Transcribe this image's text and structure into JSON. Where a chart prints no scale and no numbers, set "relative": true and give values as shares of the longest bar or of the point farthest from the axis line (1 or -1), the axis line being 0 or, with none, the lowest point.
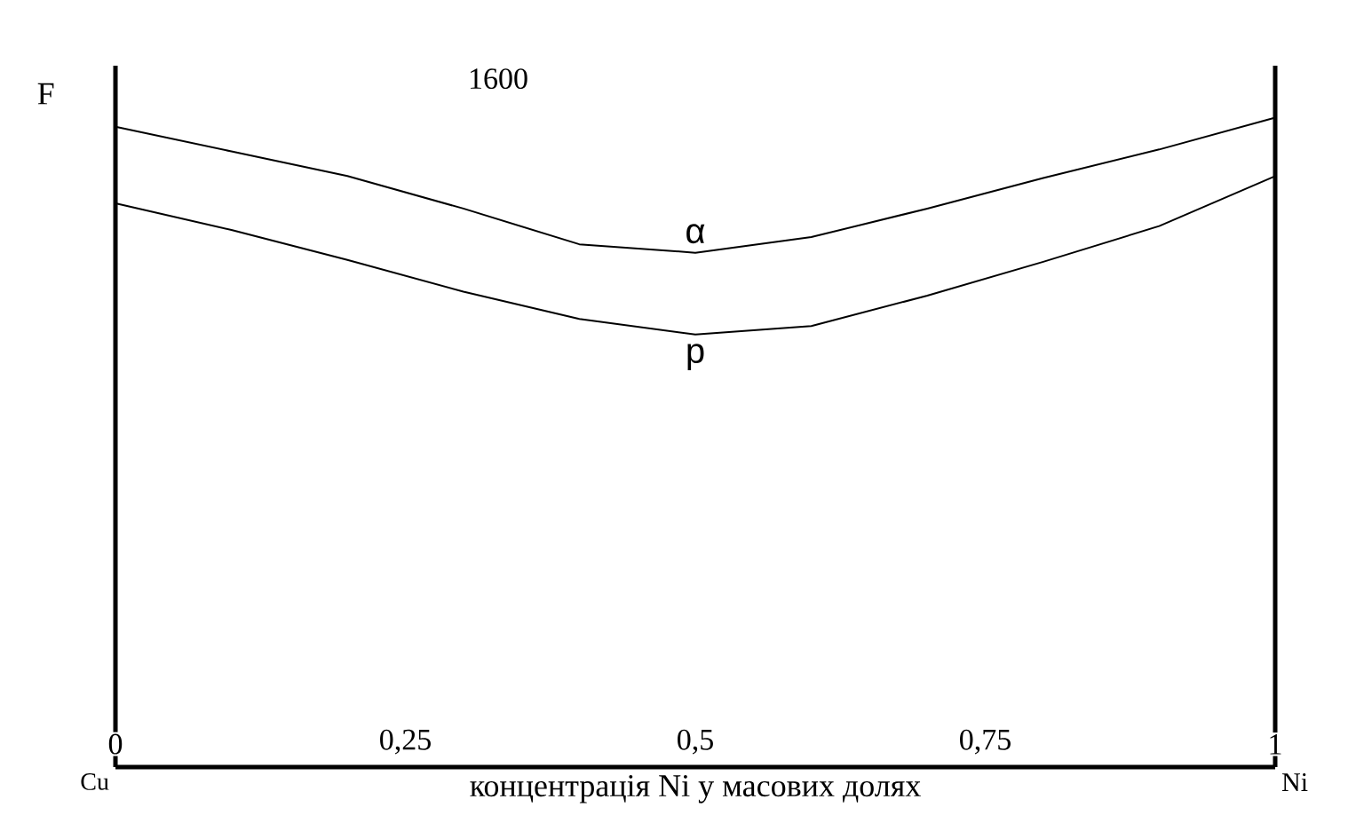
{
  "chart_data": {
    "type": "line",
    "relative": true,
    "ylabel": "F",
    "xlabel": "концентрація Ni у масових долях",
    "x": [
      0,
      0.1,
      0.2,
      0.3,
      0.4,
      0.5,
      0.6,
      0.7,
      0.8,
      0.9,
      1.0
    ],
    "xlim": [
      0,
      1
    ],
    "xticks": [
      {
        "value": 0,
        "label": "0"
      },
      {
        "value": 0.25,
        "label": "0,25"
      },
      {
        "value": 0.5,
        "label": "0,5"
      },
      {
        "value": 0.75,
        "label": "0,75"
      },
      {
        "value": 1,
        "label": "1"
      }
    ],
    "series": [
      {
        "name": "α",
        "color": "#000000",
        "values": [
          0.986,
          0.948,
          0.91,
          0.86,
          0.805,
          0.792,
          0.816,
          0.86,
          0.907,
          0.951,
          1.0
        ]
      },
      {
        "name": "p",
        "color": "#000000",
        "values": [
          0.868,
          0.827,
          0.781,
          0.732,
          0.69,
          0.666,
          0.679,
          0.726,
          0.778,
          0.833,
          0.91
        ]
      }
    ],
    "ref_lines": [
      {
        "axis": "x",
        "value": 1,
        "color": "#000000"
      }
    ],
    "annotations": [
      "1600",
      "Cu",
      "Ni"
    ]
  }
}
